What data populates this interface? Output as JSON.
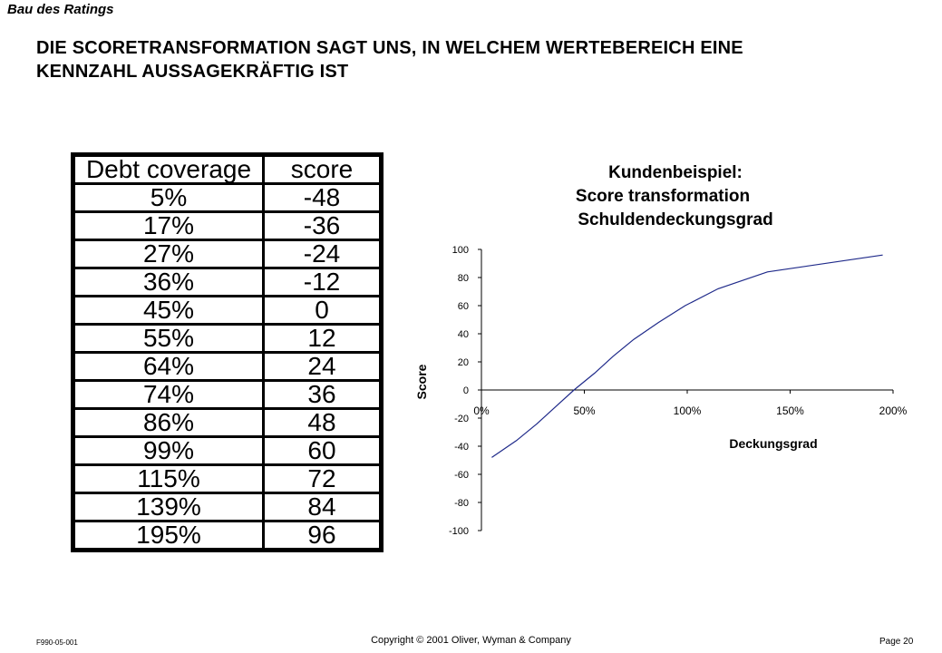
{
  "header": {
    "section": "Bau des Ratings",
    "title_line1": "DIE SCORETRANSFORMATION SAGT UNS, IN WELCHEM  WERTEBEREICH EINE",
    "title_line2": "KENNZAHL AUSSAGEKRÄFTIG IST"
  },
  "table": {
    "headers": [
      "Debt coverage",
      "score"
    ],
    "rows": [
      [
        "5%",
        "-48"
      ],
      [
        "17%",
        "-36"
      ],
      [
        "27%",
        "-24"
      ],
      [
        "36%",
        "-12"
      ],
      [
        "45%",
        "0"
      ],
      [
        "55%",
        "12"
      ],
      [
        "64%",
        "24"
      ],
      [
        "74%",
        "36"
      ],
      [
        "86%",
        "48"
      ],
      [
        "99%",
        "60"
      ],
      [
        "115%",
        "72"
      ],
      [
        "139%",
        "84"
      ],
      [
        "195%",
        "96"
      ]
    ]
  },
  "chart_data": {
    "type": "line",
    "title": [
      "Kundenbeispiel:",
      "Score transformation",
      "Schuldendeckungsgrad"
    ],
    "xlabel": "Deckungsgrad",
    "ylabel": "Score",
    "xlim": [
      0,
      2
    ],
    "ylim": [
      -100,
      100
    ],
    "x_ticks": [
      "0%",
      "50%",
      "100%",
      "150%",
      "200%"
    ],
    "y_ticks": [
      "100",
      "80",
      "60",
      "40",
      "20",
      "0",
      "-20",
      "-40",
      "-60",
      "-80",
      "-100"
    ],
    "grid": false,
    "series": [
      {
        "x": [
          0.05,
          0.17,
          0.27,
          0.36,
          0.45,
          0.55,
          0.64,
          0.74,
          0.86,
          0.99,
          1.15,
          1.39,
          1.95
        ],
        "y": [
          -48,
          -36,
          -24,
          -12,
          0,
          12,
          24,
          36,
          48,
          60,
          72,
          84,
          96
        ]
      }
    ],
    "line_color": "#1f2a8a"
  },
  "footer": {
    "code": "F990-05-001",
    "copyright": "Copyright © 2001 Oliver, Wyman & Company",
    "page": "Page 20"
  }
}
